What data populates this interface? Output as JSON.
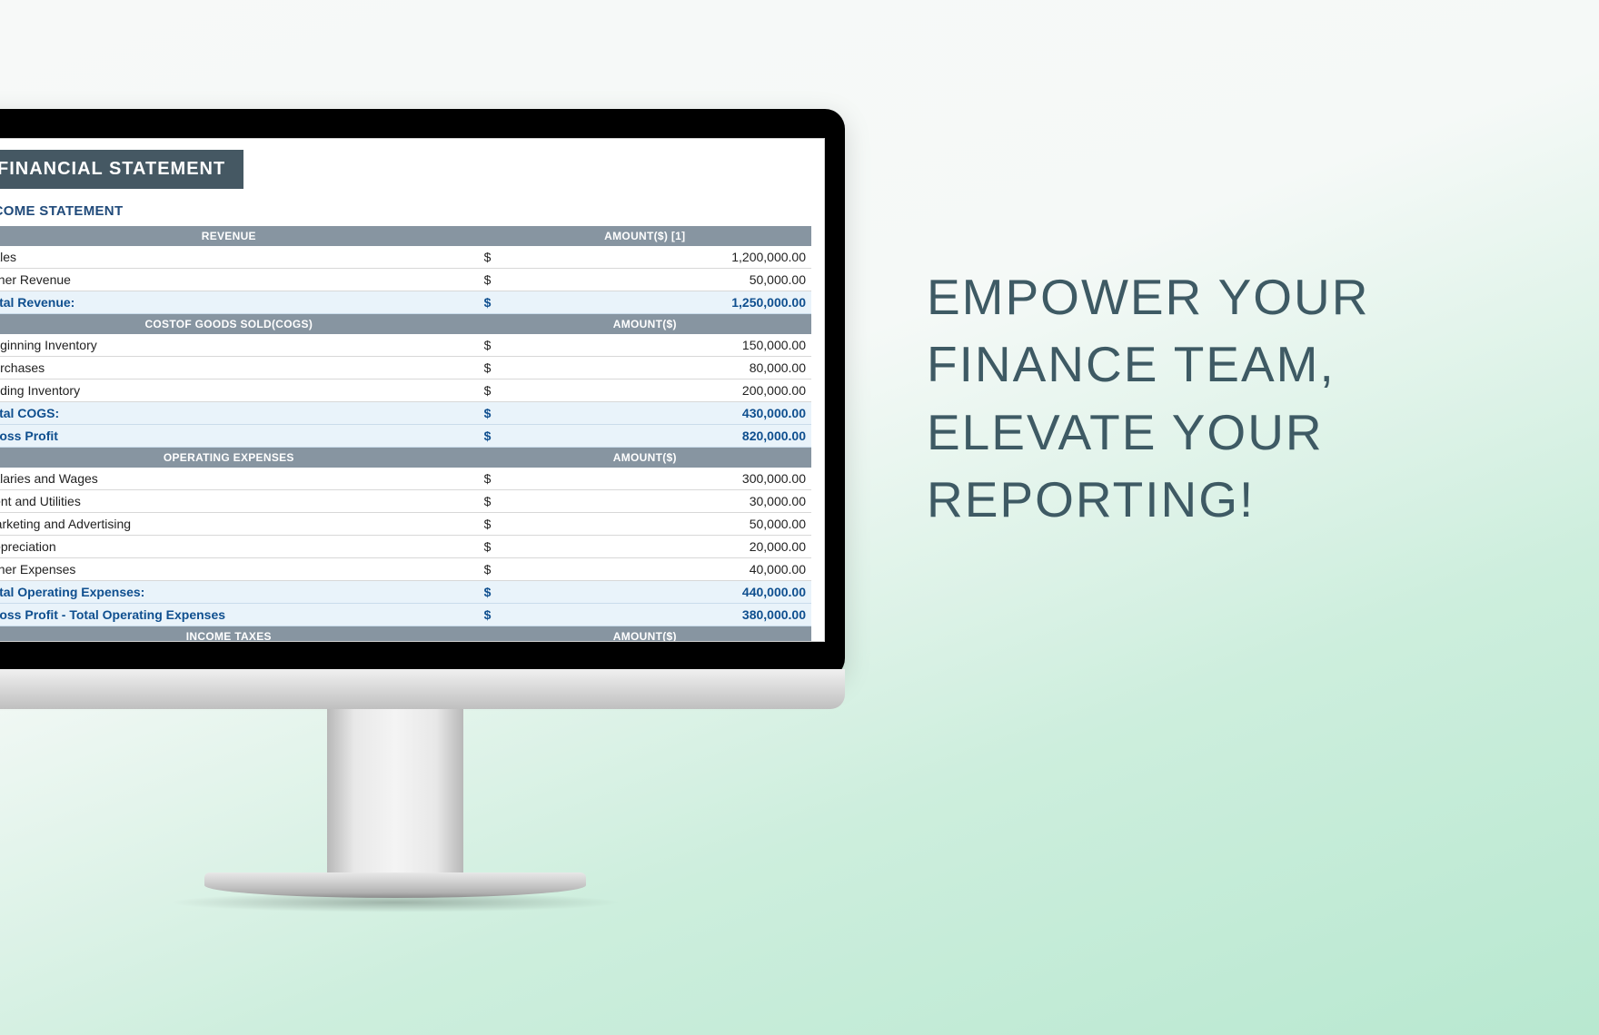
{
  "tagline": "EMPOWER YOUR FINANCE TEAM, ELEVATE YOUR REPORTING!",
  "colors": {
    "badge_bg": "#455863",
    "section_header_bg": "#8795a1",
    "total_row_bg": "#e9f3fa",
    "total_text": "#0f4f8f",
    "subheading": "#204a7a",
    "tagline_text": "#3e5a64"
  },
  "statement": {
    "title": "FINANCIAL STATEMENT",
    "subtitle": "INCOME STATEMENT",
    "currency": "$",
    "sections": [
      {
        "headers": [
          "REVENUE",
          "AMOUNT($)  [1]"
        ],
        "rows": [
          {
            "label": "Sales",
            "amount": "1,200,000.00"
          },
          {
            "label": "Other Revenue",
            "amount": "50,000.00"
          }
        ],
        "totals": [
          {
            "label": "Total Revenue:",
            "amount": "1,250,000.00"
          }
        ]
      },
      {
        "headers": [
          "COSTOF GOODS SOLD(COGS)",
          "AMOUNT($)"
        ],
        "rows": [
          {
            "label": "Beginning Inventory",
            "amount": "150,000.00"
          },
          {
            "label": "Purchases",
            "amount": "80,000.00"
          },
          {
            "label": "Ending Inventory",
            "amount": "200,000.00"
          }
        ],
        "totals": [
          {
            "label": "Total COGS:",
            "amount": "430,000.00"
          },
          {
            "label": "Gross Profit",
            "amount": "820,000.00"
          }
        ]
      },
      {
        "headers": [
          "OPERATING EXPENSES",
          "AMOUNT($)"
        ],
        "rows": [
          {
            "label": "Salaries and Wages",
            "amount": "300,000.00"
          },
          {
            "label": "Rent and Utilities",
            "amount": "30,000.00"
          },
          {
            "label": "Marketing and Advertising",
            "amount": "50,000.00"
          },
          {
            "label": "Depreciation",
            "amount": "20,000.00"
          },
          {
            "label": "Other Expenses",
            "amount": "40,000.00"
          }
        ],
        "totals": [
          {
            "label": "Total Operating Expenses:",
            "amount": "440,000.00"
          },
          {
            "label": "Gross Profit - Total Operating Expenses",
            "amount": "380,000.00"
          }
        ]
      },
      {
        "headers": [
          "INCOME TAXES",
          "AMOUNT($)"
        ],
        "rows": [],
        "totals": []
      }
    ]
  }
}
